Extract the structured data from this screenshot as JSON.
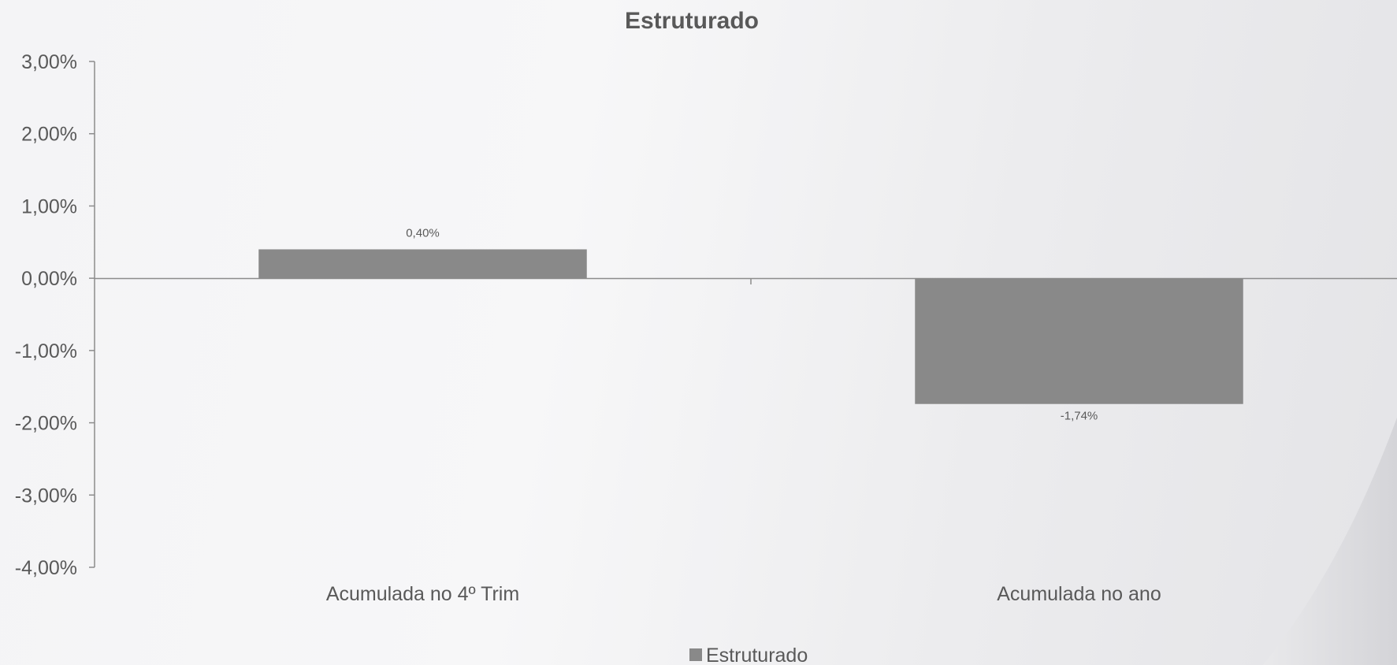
{
  "chart_data": {
    "type": "bar",
    "title": "Estruturado",
    "categories": [
      "Acumulada no 4º Trim",
      "Acumulada no ano"
    ],
    "series": [
      {
        "name": "Estruturado",
        "values": [
          0.4,
          -1.74
        ],
        "data_labels": [
          "0,40%",
          "-1,74%"
        ],
        "color": "#898989"
      }
    ],
    "ylim": [
      -4,
      3
    ],
    "yticks": [
      3,
      2,
      1,
      0,
      -1,
      -2,
      -3,
      -4
    ],
    "ytick_labels": [
      "3,00%",
      "2,00%",
      "1,00%",
      "0,00%",
      "-1,00%",
      "-2,00%",
      "-3,00%",
      "-4,00%"
    ],
    "xlabel": "",
    "ylabel": "",
    "grid": false,
    "legend_position": "bottom"
  },
  "colors": {
    "text": "#595959",
    "axis": "#8c8c8c",
    "bar": "#898989"
  }
}
